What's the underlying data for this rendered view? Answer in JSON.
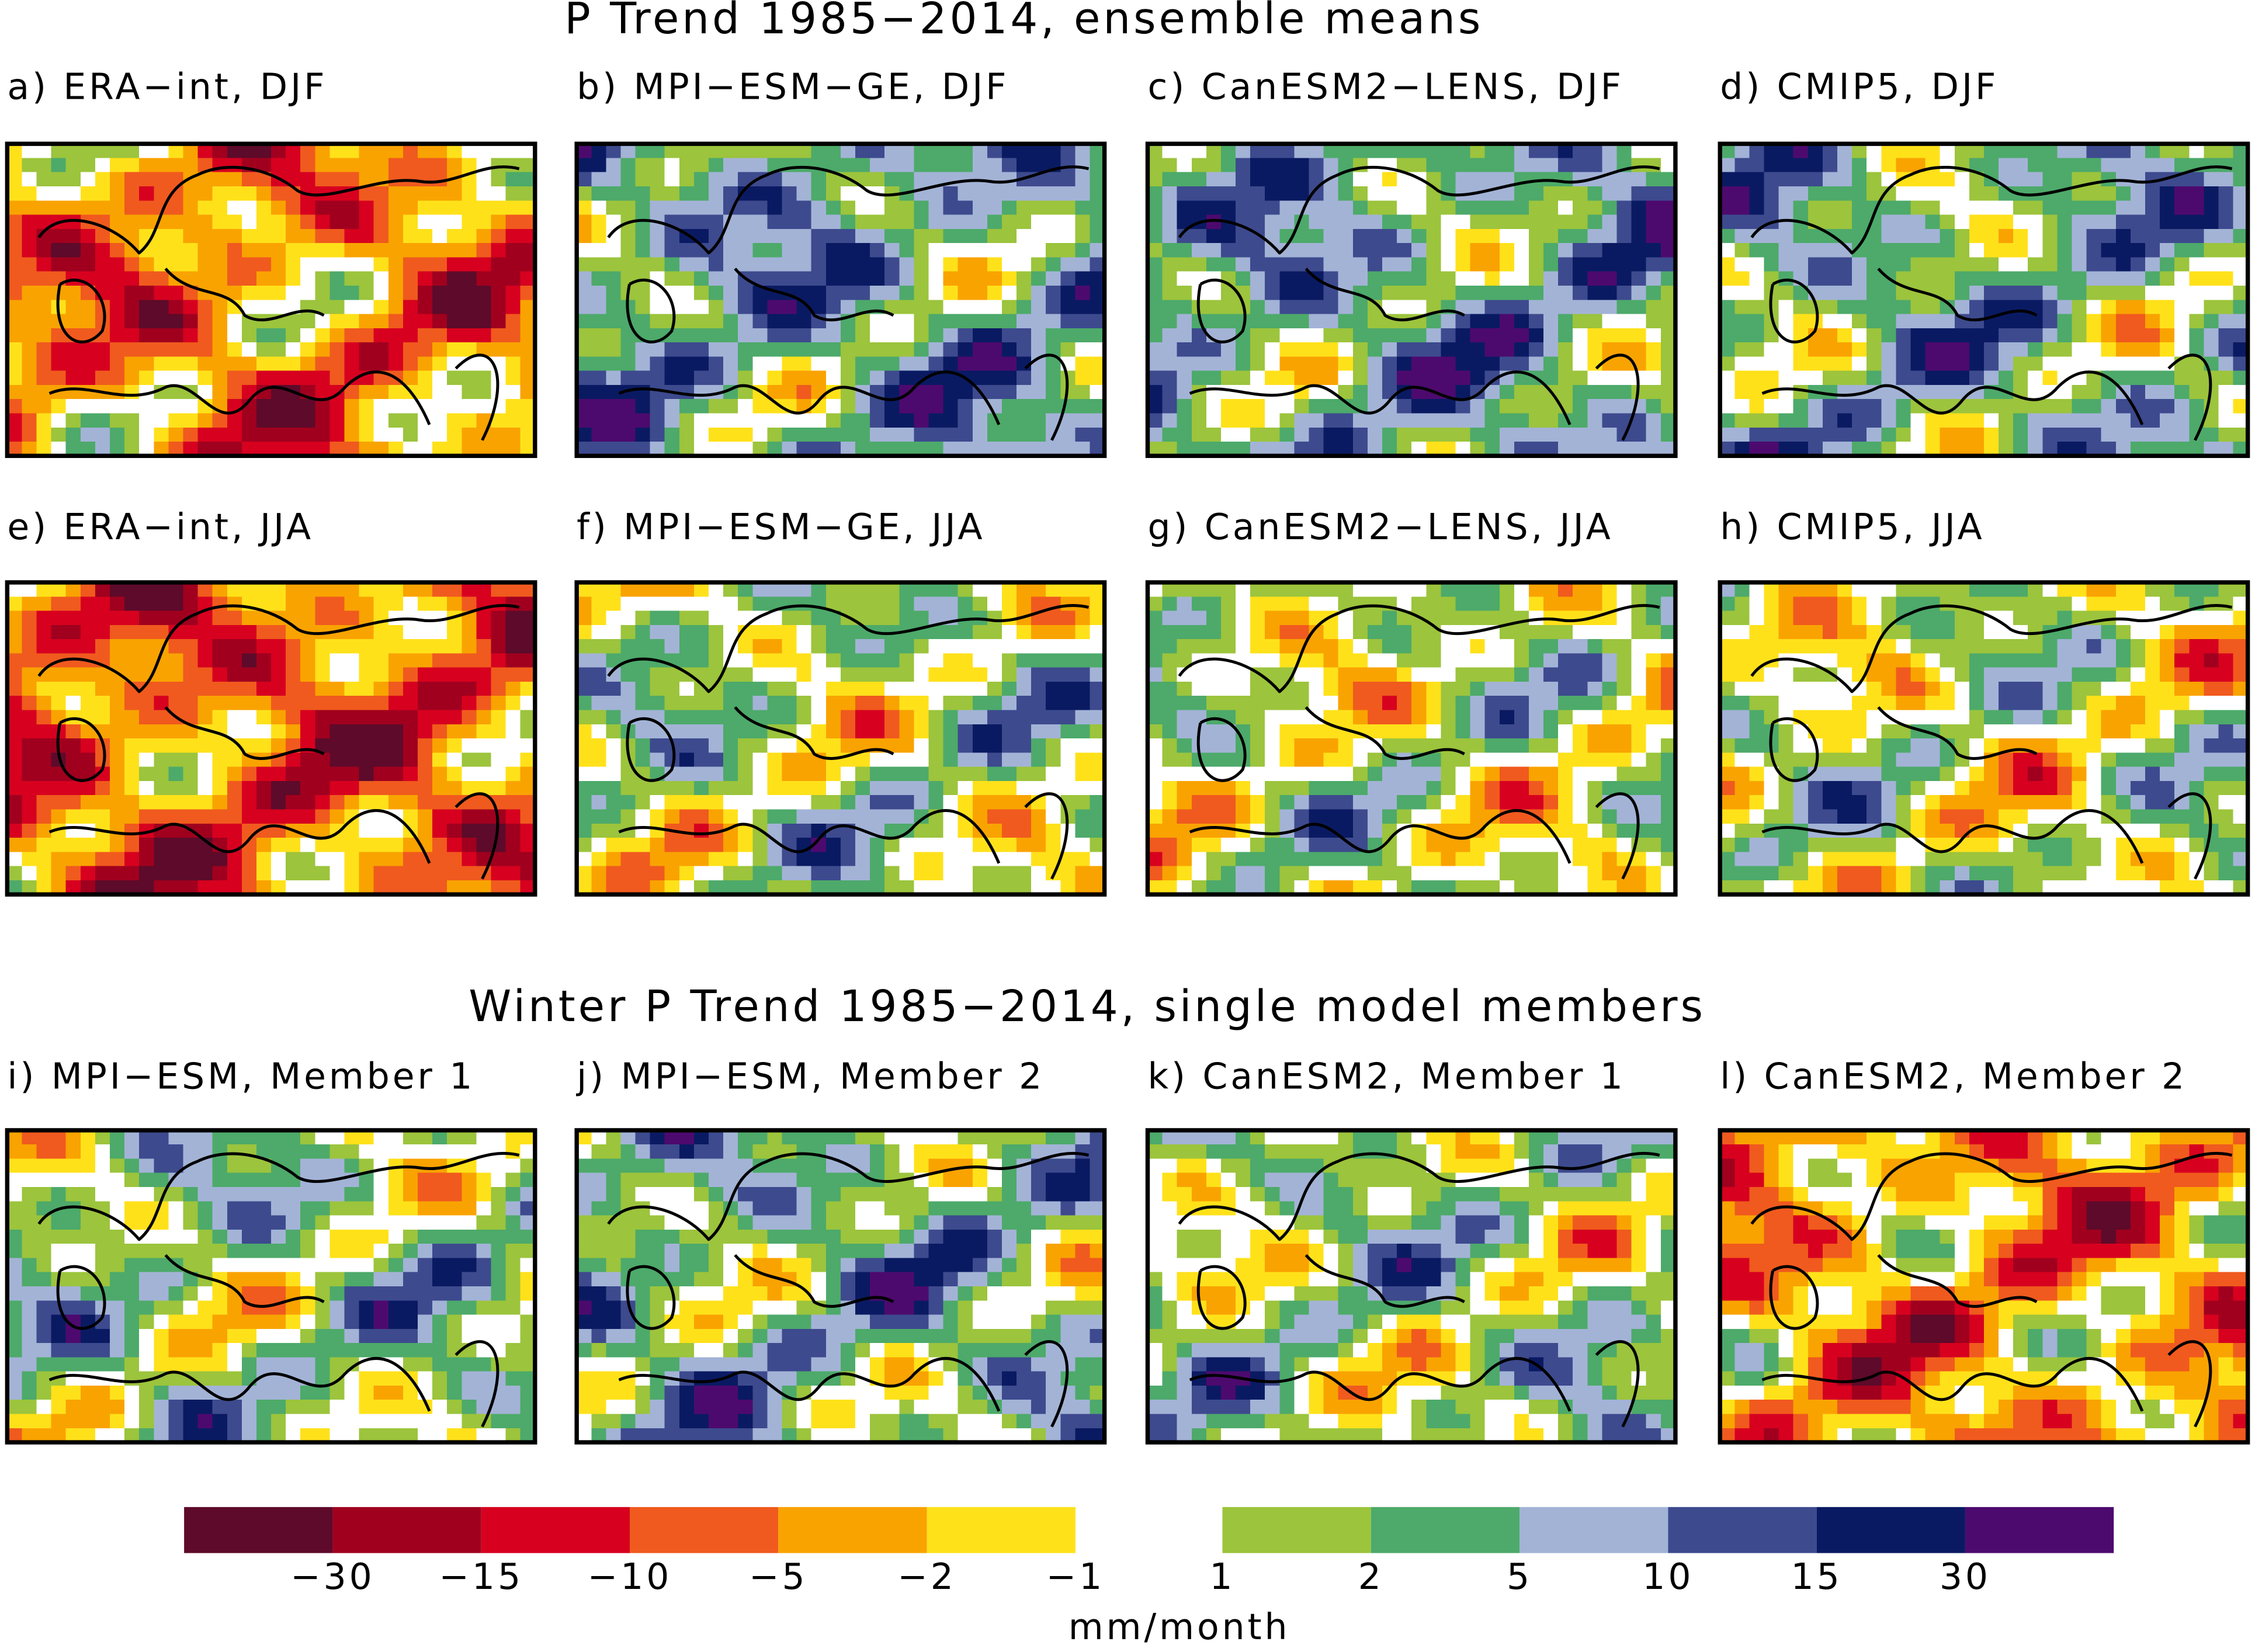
{
  "title": "P Trend 1985−2014, ensemble means",
  "subtitle": "Winter P Trend 1985−2014, single model members",
  "panels": [
    "a) ERA−int, DJF",
    "b) MPI−ESM−GE, DJF",
    "c) CanESM2−LENS, DJF",
    "d) CMIP5, DJF",
    "e) ERA−int, JJA",
    "f) MPI−ESM−GE, JJA",
    "g) CanESM2−LENS, JJA",
    "h) CMIP5, JJA",
    "i) MPI−ESM, Member 1",
    "j) MPI−ESM, Member 2",
    "k) CanESM2, Member 1",
    "l) CanESM2, Member 2"
  ],
  "colorbar": {
    "negative": {
      "colors": [
        "#5e0a2a",
        "#a0001e",
        "#d7001f",
        "#f05a1e",
        "#f9a300",
        "#ffe11a"
      ],
      "ticks": [
        {
          "value": -30,
          "label": "−30"
        },
        {
          "value": -15,
          "label": "−15"
        },
        {
          "value": -10,
          "label": "−10"
        },
        {
          "value": -5,
          "label": "−5"
        },
        {
          "value": -2,
          "label": "−2"
        },
        {
          "value": -1,
          "label": "−1"
        }
      ]
    },
    "positive": {
      "colors": [
        "#9cc43c",
        "#4daa6a",
        "#a3b3d6",
        "#3d4a8e",
        "#0a1a62",
        "#4d0a6e"
      ],
      "ticks": [
        1,
        2,
        5,
        10,
        15,
        30
      ]
    },
    "unit": "mm/month"
  }
}
